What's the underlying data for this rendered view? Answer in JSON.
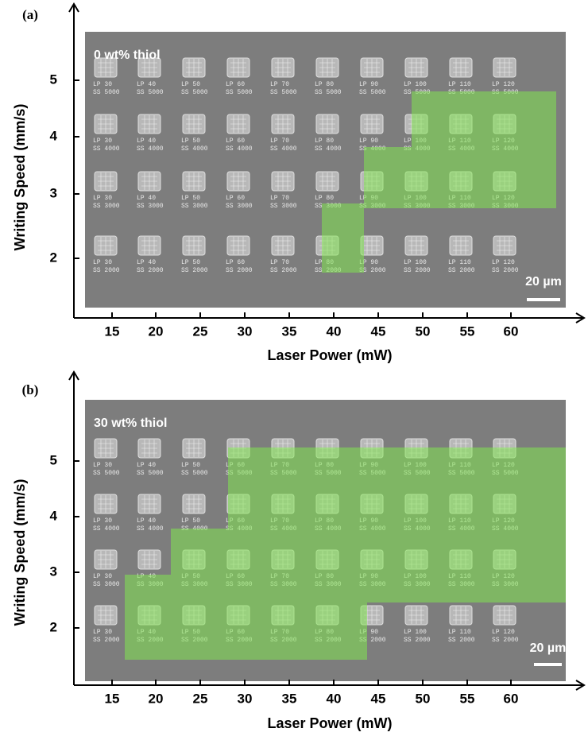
{
  "panels": [
    {
      "label": "(a)",
      "annotation": "0 wt%  thiol",
      "y_axis_label": "Writing Speed (mm/s)",
      "x_axis_label": "Laser Power (mW)",
      "y_ticks": [
        "5",
        "4",
        "3",
        "2"
      ],
      "x_ticks": [
        "15",
        "20",
        "25",
        "30",
        "35",
        "40",
        "45",
        "50",
        "55",
        "60"
      ],
      "rows": [
        {
          "ss": "SS 5000",
          "lp": [
            "LP 30",
            "LP 40",
            "LP 50",
            "LP 60",
            "LP 70",
            "LP 80",
            "LP 90",
            "LP 100",
            "LP 110",
            "LP 120"
          ]
        },
        {
          "ss": "SS 4000",
          "lp": [
            "LP 30",
            "LP 40",
            "LP 50",
            "LP 60",
            "LP 70",
            "LP 80",
            "LP 90",
            "LP 100",
            "LP 110",
            "LP 120"
          ]
        },
        {
          "ss": "SS 3000",
          "lp": [
            "LP 30",
            "LP 40",
            "LP 50",
            "LP 60",
            "LP 70",
            "LP 80",
            "LP 90",
            "LP 100",
            "LP 110",
            "LP 120"
          ]
        },
        {
          "ss": "SS 2000",
          "lp": [
            "LP 30",
            "LP 40",
            "LP 50",
            "LP 60",
            "LP 70",
            "LP 80",
            "LP 90",
            "LP 100",
            "LP 110",
            "LP 120"
          ]
        }
      ],
      "scale_bar": "20 µm"
    },
    {
      "label": "(b)",
      "annotation": "30 wt%  thiol",
      "y_axis_label": "Writing Speed (mm/s)",
      "x_axis_label": "Laser Power (mW)",
      "y_ticks": [
        "5",
        "4",
        "3",
        "2"
      ],
      "x_ticks": [
        "15",
        "20",
        "25",
        "30",
        "35",
        "40",
        "45",
        "50",
        "55",
        "60"
      ],
      "rows": [
        {
          "ss": "SS 5000",
          "lp": [
            "LP 30",
            "LP 40",
            "LP 50",
            "LP 60",
            "LP 70",
            "LP 80",
            "LP 90",
            "LP 100",
            "LP 110",
            "LP 120"
          ]
        },
        {
          "ss": "SS 4000",
          "lp": [
            "LP 30",
            "LP 40",
            "LP 50",
            "LP 60",
            "LP 70",
            "LP 80",
            "LP 90",
            "LP 100",
            "LP 110",
            "LP 120"
          ]
        },
        {
          "ss": "SS 3000",
          "lp": [
            "LP 30",
            "LP 40",
            "LP 50",
            "LP 60",
            "LP 70",
            "LP 80",
            "LP 90",
            "LP 100",
            "LP 110",
            "LP 120"
          ]
        },
        {
          "ss": "SS 2000",
          "lp": [
            "LP 30",
            "LP 40",
            "LP 50",
            "LP 60",
            "LP 70",
            "LP 80",
            "LP 90",
            "LP 100",
            "LP 110",
            "LP 120"
          ]
        }
      ],
      "scale_bar": "20 µm"
    }
  ]
}
